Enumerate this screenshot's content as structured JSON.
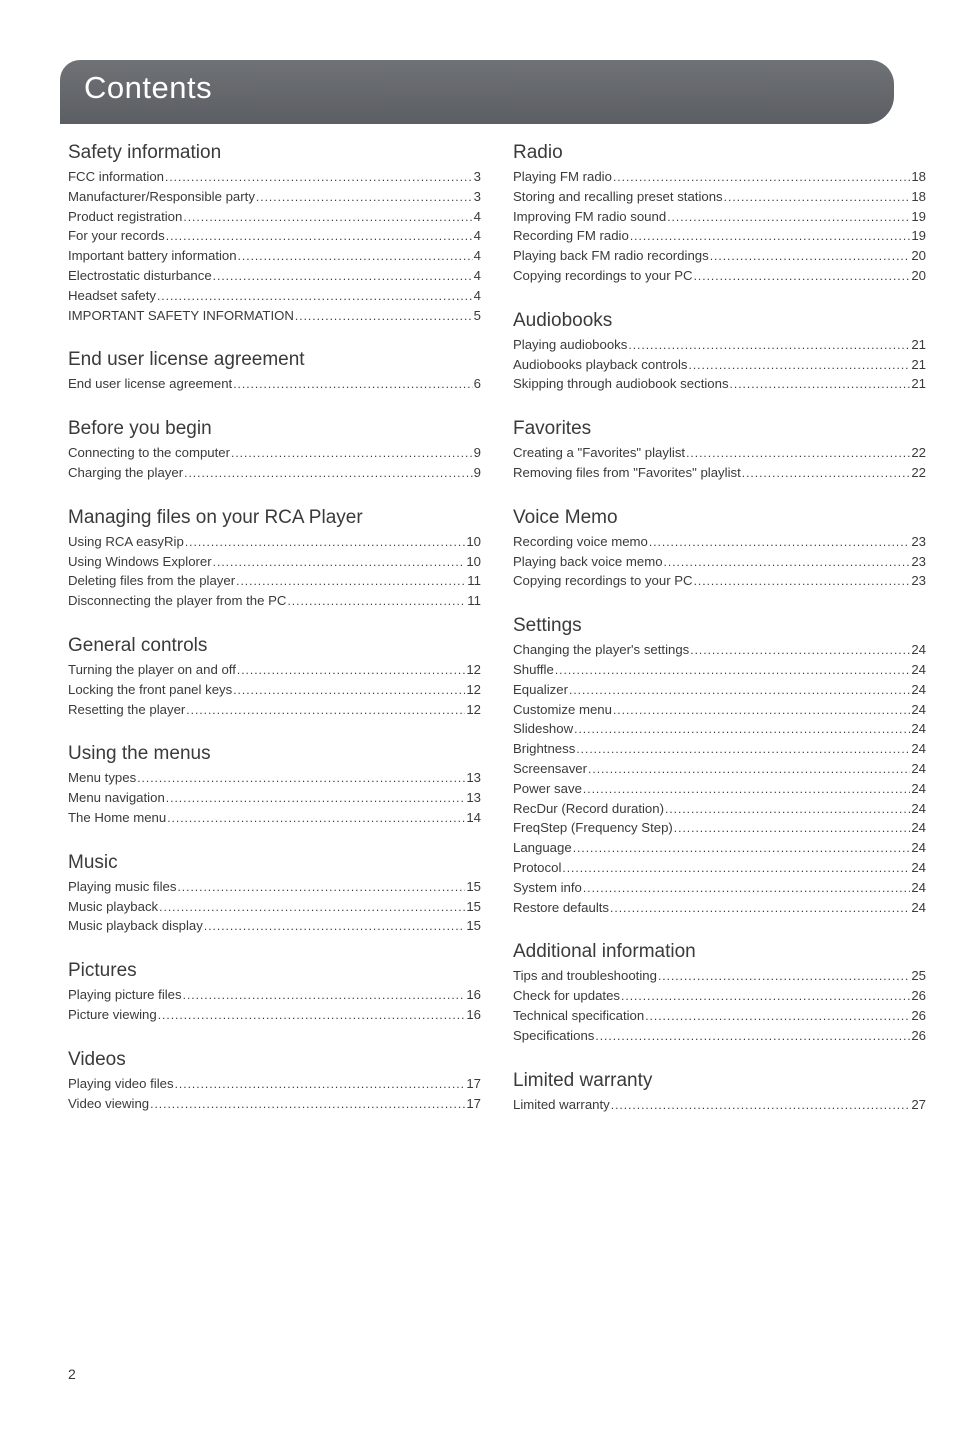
{
  "title": "Contents",
  "page_number": "2",
  "left_sections": [
    {
      "heading": "Safety information",
      "entries": [
        [
          "FCC information",
          "3"
        ],
        [
          "Manufacturer/Responsible party",
          "3"
        ],
        [
          "Product registration",
          "4"
        ],
        [
          "For your records",
          "4"
        ],
        [
          "Important battery information",
          "4"
        ],
        [
          "Electrostatic disturbance",
          "4"
        ],
        [
          "Headset safety",
          "4"
        ],
        [
          "IMPORTANT SAFETY INFORMATION",
          "5"
        ]
      ]
    },
    {
      "heading": "End user license agreement",
      "entries": [
        [
          "End user license agreement",
          "6"
        ]
      ]
    },
    {
      "heading": "Before you begin",
      "entries": [
        [
          "Connecting to the computer",
          "9"
        ],
        [
          "Charging the player",
          "9"
        ]
      ]
    },
    {
      "heading": "Managing files on your RCA Player",
      "entries": [
        [
          "Using RCA easyRip",
          "10"
        ],
        [
          "Using Windows Explorer",
          "10"
        ],
        [
          "Deleting files from the player",
          "11"
        ],
        [
          "Disconnecting the player from the PC",
          "11"
        ]
      ]
    },
    {
      "heading": "General controls",
      "entries": [
        [
          "Turning the player on and off",
          "12"
        ],
        [
          "Locking the front panel keys",
          "12"
        ],
        [
          "Resetting the player",
          "12"
        ]
      ]
    },
    {
      "heading": "Using the menus",
      "entries": [
        [
          "Menu types",
          "13"
        ],
        [
          "Menu navigation",
          "13"
        ],
        [
          "The Home menu",
          "14"
        ]
      ]
    },
    {
      "heading": "Music",
      "entries": [
        [
          "Playing music files",
          "15"
        ],
        [
          "Music playback",
          "15"
        ],
        [
          "Music playback display",
          "15"
        ]
      ]
    },
    {
      "heading": "Pictures",
      "entries": [
        [
          "Playing picture files",
          "16"
        ],
        [
          "Picture viewing",
          "16"
        ]
      ]
    },
    {
      "heading": "Videos",
      "entries": [
        [
          "Playing video files",
          "17"
        ],
        [
          "Video viewing",
          "17"
        ]
      ]
    }
  ],
  "right_sections": [
    {
      "heading": "Radio",
      "entries": [
        [
          "Playing FM radio",
          "18"
        ],
        [
          "Storing and recalling preset stations",
          "18"
        ],
        [
          "Improving FM radio sound",
          "19"
        ],
        [
          "Recording FM radio",
          "19"
        ],
        [
          "Playing back FM radio recordings",
          "20"
        ],
        [
          "Copying recordings to your PC",
          "20"
        ]
      ]
    },
    {
      "heading": "Audiobooks",
      "entries": [
        [
          "Playing audiobooks",
          "21"
        ],
        [
          "Audiobooks playback controls",
          "21"
        ],
        [
          "Skipping through audiobook sections",
          "21"
        ]
      ]
    },
    {
      "heading": "Favorites",
      "entries": [
        [
          "Creating a \"Favorites\" playlist",
          "22"
        ],
        [
          "Removing files from \"Favorites\" playlist",
          "22"
        ]
      ]
    },
    {
      "heading": "Voice Memo",
      "entries": [
        [
          "Recording voice memo",
          "23"
        ],
        [
          "Playing back voice memo",
          "23"
        ],
        [
          "Copying recordings to your PC",
          "23"
        ]
      ]
    },
    {
      "heading": "Settings",
      "entries": [
        [
          "Changing the player's settings",
          "24"
        ],
        [
          "Shuffle",
          "24"
        ],
        [
          "Equalizer",
          "24"
        ],
        [
          "Customize menu",
          "24"
        ],
        [
          "Slideshow",
          "24"
        ],
        [
          "Brightness",
          "24"
        ],
        [
          "Screensaver",
          "24"
        ],
        [
          "Power save",
          "24"
        ],
        [
          "RecDur (Record duration)",
          "24"
        ],
        [
          "FreqStep (Frequency Step)",
          "24"
        ],
        [
          "Language",
          "24"
        ],
        [
          "Protocol",
          "24"
        ],
        [
          "System info",
          "24"
        ],
        [
          "Restore defaults",
          "24"
        ]
      ]
    },
    {
      "heading": "Additional information",
      "entries": [
        [
          "Tips and troubleshooting",
          "25"
        ],
        [
          "Check for updates",
          "26"
        ],
        [
          "Technical specification",
          "26"
        ],
        [
          "Specifications",
          "26"
        ]
      ]
    },
    {
      "heading": "Limited warranty",
      "entries": [
        [
          "Limited warranty",
          "27"
        ]
      ]
    }
  ]
}
